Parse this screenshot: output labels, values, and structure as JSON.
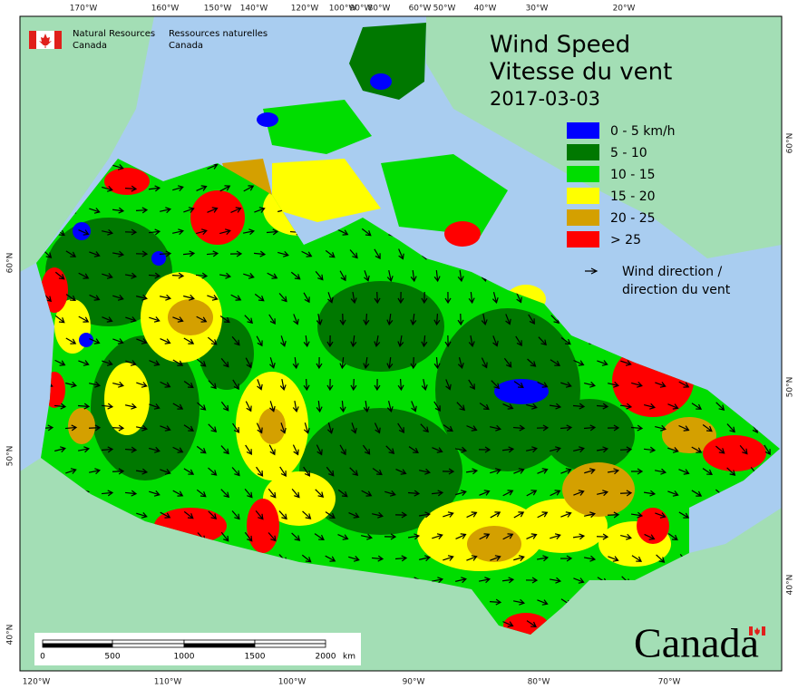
{
  "header": {
    "department_en": "Natural Resources",
    "country_en": "Canada",
    "department_fr": "Ressources naturelles",
    "country_fr": "Canada"
  },
  "title": {
    "line1": "Wind Speed",
    "line2": "Vitesse du vent",
    "date": "2017-03-03"
  },
  "legend": {
    "items": [
      {
        "label": "0 - 5 km/h",
        "color": "#0000ff"
      },
      {
        "label": "5 - 10",
        "color": "#007800"
      },
      {
        "label": "10 - 15",
        "color": "#00dd00"
      },
      {
        "label": "15 - 20",
        "color": "#ffff00"
      },
      {
        "label": "20 - 25",
        "color": "#d4a000"
      },
      {
        "label": "> 25",
        "color": "#ff0000"
      }
    ],
    "direction_label": [
      "Wind direction /",
      "direction du vent"
    ]
  },
  "graticule": {
    "top": [
      "170°W",
      "160°W",
      "150°W",
      "140°W",
      "120°W",
      "100°W",
      "90°W",
      "80°W",
      "60°W",
      "50°W",
      "40°W",
      "30°W",
      "20°W"
    ],
    "bottom": [
      "120°W",
      "110°W",
      "100°W",
      "90°W",
      "80°W",
      "70°W"
    ],
    "left": [
      "60°N",
      "50°N",
      "40°N"
    ],
    "right": [
      "60°N",
      "50°N",
      "40°N"
    ]
  },
  "scale_bar": {
    "labels": [
      "0",
      "500",
      "1000",
      "1500",
      "2000"
    ],
    "unit": "km"
  },
  "wordmark": "Canada"
}
